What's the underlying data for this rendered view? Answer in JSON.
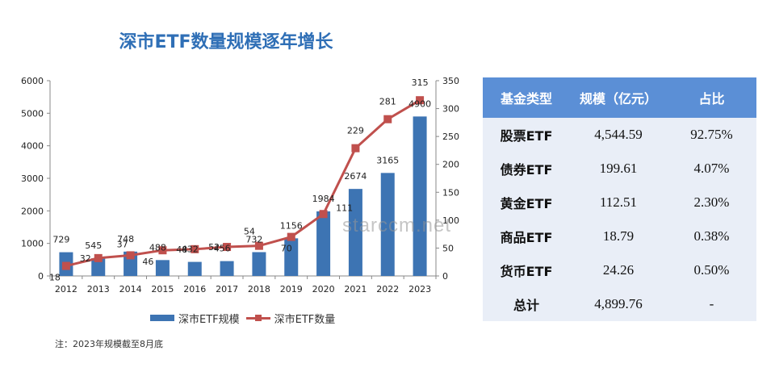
{
  "title": "深市ETF数量规模逐年增长",
  "legend": {
    "bar_label": "深市ETF规模",
    "line_label": "深市ETF数量"
  },
  "note": "注：2023年规模截至8月底",
  "watermark": "starccm.net",
  "colors": {
    "bar": "#3d74b3",
    "line": "#c0504d",
    "title": "#2f6fb6",
    "table_header": "#5b8fd6",
    "table_body": "#e9eef7"
  },
  "chart_data": {
    "type": "bar",
    "categories": [
      "2012",
      "2013",
      "2014",
      "2015",
      "2016",
      "2017",
      "2018",
      "2019",
      "2020",
      "2021",
      "2022",
      "2023"
    ],
    "series": [
      {
        "name": "深市ETF规模",
        "type": "bar",
        "axis": "left",
        "values": [
          729,
          545,
          748,
          488,
          432,
          456,
          732,
          1156,
          1984,
          2674,
          3165,
          4900
        ]
      },
      {
        "name": "深市ETF数量",
        "type": "line",
        "axis": "right",
        "values": [
          18,
          32,
          37,
          46,
          48,
          52,
          54,
          70,
          111,
          229,
          281,
          315
        ]
      }
    ],
    "y_left": {
      "min": 0,
      "max": 6000,
      "ticks": [
        0,
        1000,
        2000,
        3000,
        4000,
        5000,
        6000
      ]
    },
    "y_right": {
      "min": 0,
      "max": 350,
      "ticks": [
        0,
        50,
        100,
        150,
        200,
        250,
        300,
        350
      ]
    },
    "legend_position": "bottom",
    "grid": false
  },
  "table": {
    "headers": [
      "基金类型",
      "规模（亿元）",
      "占比"
    ],
    "rows": [
      [
        "股票ETF",
        "4,544.59",
        "92.75%"
      ],
      [
        "债券ETF",
        "199.61",
        "4.07%"
      ],
      [
        "黄金ETF",
        "112.51",
        "2.30%"
      ],
      [
        "商品ETF",
        "18.79",
        "0.38%"
      ],
      [
        "货币ETF",
        "24.26",
        "0.50%"
      ],
      [
        "总计",
        "4,899.76",
        "-"
      ]
    ]
  }
}
